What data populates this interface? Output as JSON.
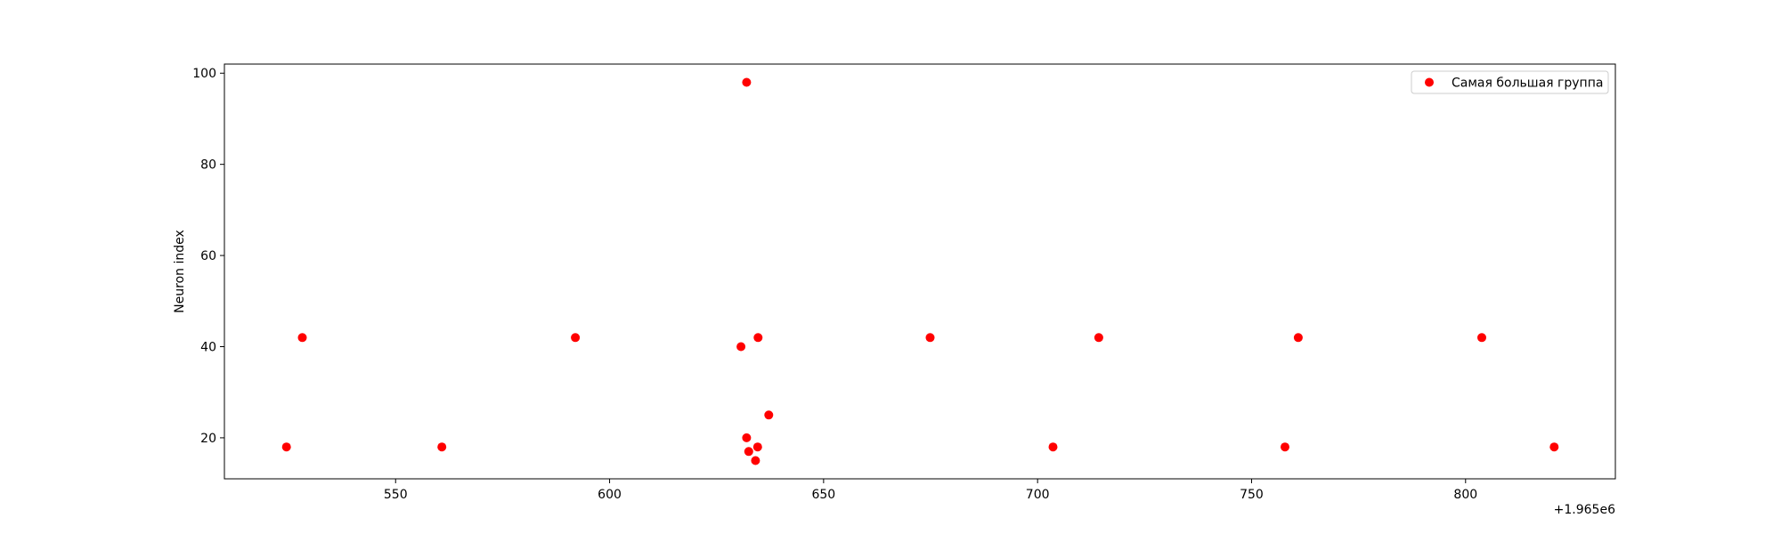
{
  "chart_data": {
    "type": "scatter",
    "title": "",
    "xlabel": "",
    "ylabel": "Neuron index",
    "x_offset_label": "+1.965e6",
    "xlim": [
      1965510,
      1965835
    ],
    "ylim": [
      11,
      102
    ],
    "x_ticks": [
      {
        "value": 1965550,
        "label": "550"
      },
      {
        "value": 1965600,
        "label": "600"
      },
      {
        "value": 1965650,
        "label": "650"
      },
      {
        "value": 1965700,
        "label": "700"
      },
      {
        "value": 1965750,
        "label": "750"
      },
      {
        "value": 1965800,
        "label": "800"
      }
    ],
    "y_ticks": [
      {
        "value": 20,
        "label": "20"
      },
      {
        "value": 40,
        "label": "40"
      },
      {
        "value": 60,
        "label": "60"
      },
      {
        "value": 80,
        "label": "80"
      },
      {
        "value": 100,
        "label": "100"
      }
    ],
    "grid": false,
    "legend": {
      "placement": "top-right"
    },
    "series": [
      {
        "name": "Самая большая группа",
        "color": "#ff0000",
        "points": [
          {
            "x": 1965524.5,
            "y": 18
          },
          {
            "x": 1965528.2,
            "y": 42
          },
          {
            "x": 1965560.8,
            "y": 18
          },
          {
            "x": 1965592.0,
            "y": 42
          },
          {
            "x": 1965630.7,
            "y": 40
          },
          {
            "x": 1965632.0,
            "y": 98
          },
          {
            "x": 1965632.0,
            "y": 20
          },
          {
            "x": 1965632.5,
            "y": 17
          },
          {
            "x": 1965634.1,
            "y": 15
          },
          {
            "x": 1965634.6,
            "y": 18
          },
          {
            "x": 1965634.7,
            "y": 42
          },
          {
            "x": 1965637.2,
            "y": 25
          },
          {
            "x": 1965674.9,
            "y": 42
          },
          {
            "x": 1965703.6,
            "y": 18
          },
          {
            "x": 1965714.3,
            "y": 42
          },
          {
            "x": 1965757.8,
            "y": 18
          },
          {
            "x": 1965760.9,
            "y": 42
          },
          {
            "x": 1965803.8,
            "y": 42
          },
          {
            "x": 1965820.7,
            "y": 18
          }
        ]
      }
    ]
  }
}
